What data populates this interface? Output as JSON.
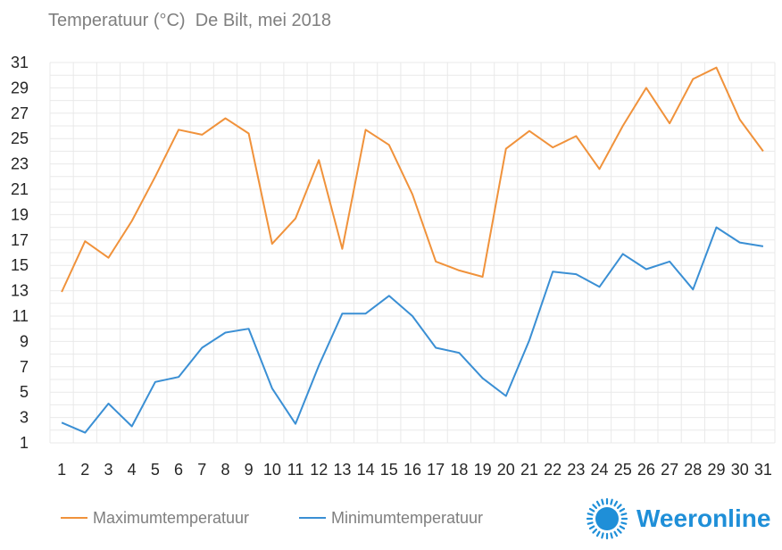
{
  "title": "Temperatuur (°C)  De Bilt, mei 2018",
  "brand": {
    "name": "Weeronline",
    "icon": "sun-logo-icon"
  },
  "colors": {
    "max": "#f0923b",
    "min": "#3a8fd4",
    "grid": "#e9e9e9",
    "brand": "#1f8fd8"
  },
  "chart_data": {
    "type": "line",
    "title": "Temperatuur (°C)  De Bilt, mei 2018",
    "xlabel": "",
    "ylabel": "",
    "ylim": [
      1,
      31
    ],
    "yticks": [
      1,
      3,
      5,
      7,
      9,
      11,
      13,
      15,
      17,
      19,
      21,
      23,
      25,
      27,
      29,
      31
    ],
    "grid": true,
    "legend_position": "bottom",
    "x": [
      "1",
      "2",
      "3",
      "4",
      "5",
      "6",
      "7",
      "8",
      "9",
      "10",
      "11",
      "12",
      "13",
      "14",
      "15",
      "16",
      "17",
      "18",
      "19",
      "20",
      "21",
      "22",
      "23",
      "24",
      "25",
      "26",
      "27",
      "28",
      "29",
      "30",
      "31"
    ],
    "series": [
      {
        "name": "Maximumtemperatuur",
        "values": [
          12.9,
          16.9,
          15.6,
          18.5,
          22.0,
          25.7,
          25.3,
          26.6,
          25.4,
          16.7,
          18.7,
          23.3,
          16.3,
          25.7,
          24.5,
          20.6,
          15.3,
          14.6,
          14.1,
          24.2,
          25.6,
          24.3,
          25.2,
          22.6,
          26.0,
          29.0,
          26.2,
          29.7,
          30.6,
          26.5,
          24.0
        ]
      },
      {
        "name": "Minimumtemperatuur",
        "values": [
          2.6,
          1.8,
          4.1,
          2.3,
          5.8,
          6.2,
          8.5,
          9.7,
          10.0,
          5.3,
          2.5,
          7.1,
          11.2,
          11.2,
          12.6,
          11.0,
          8.5,
          8.1,
          6.1,
          4.7,
          9.1,
          14.5,
          14.3,
          13.3,
          15.9,
          14.7,
          15.3,
          13.1,
          18.0,
          16.8,
          16.5
        ]
      }
    ]
  }
}
